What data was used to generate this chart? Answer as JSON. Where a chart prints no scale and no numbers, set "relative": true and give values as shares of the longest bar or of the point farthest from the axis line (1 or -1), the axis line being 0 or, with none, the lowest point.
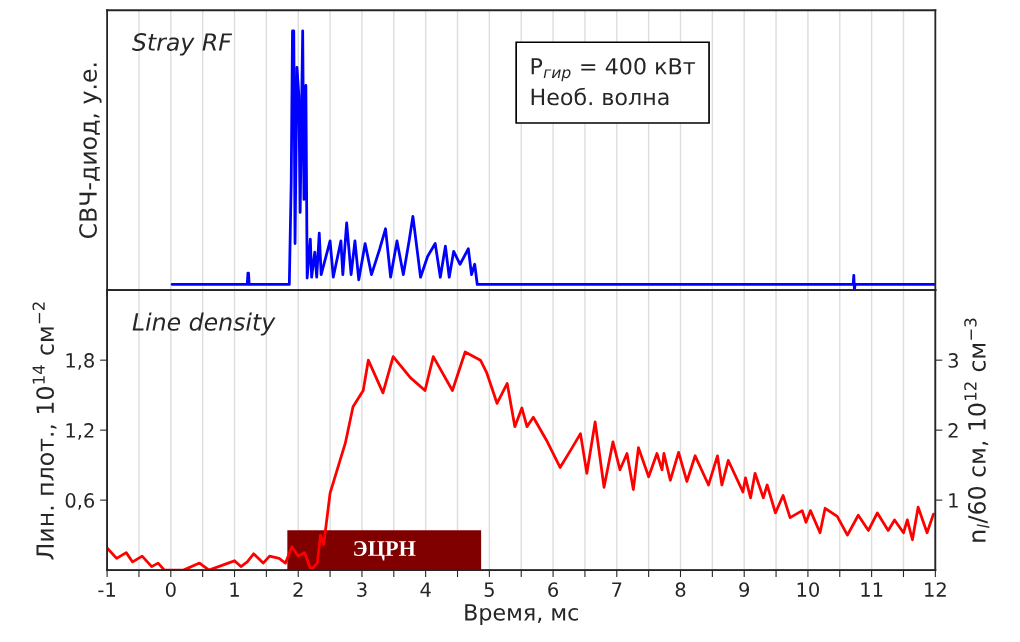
{
  "chart_data": [
    {
      "type": "line",
      "title": "Stray RF",
      "ylabel": "СВЧ-диод, у.е.",
      "relative": true,
      "tick_labels": false,
      "grid": "x",
      "xlim": [
        -1,
        12
      ],
      "xticks": [
        -1,
        {
          "value": -0.5,
          "label": null
        },
        0,
        {
          "value": 0.5,
          "label": null
        },
        1,
        {
          "value": 1.5,
          "label": null
        },
        2,
        {
          "value": 2.5,
          "label": null
        },
        3,
        {
          "value": 3.5,
          "label": null
        },
        4,
        {
          "value": 4.5,
          "label": null
        },
        5,
        {
          "value": 5.5,
          "label": null
        },
        6,
        {
          "value": 6.5,
          "label": null
        },
        7,
        {
          "value": 7.5,
          "label": null
        },
        8,
        {
          "value": 8.5,
          "label": null
        },
        9,
        {
          "value": 9.5,
          "label": null
        },
        10,
        {
          "value": 10.5,
          "label": null
        },
        11,
        {
          "value": 11.5,
          "label": null
        },
        12
      ],
      "annotations": [
        "P$_{гир}$ = 400 кВт\nНеоб. волна"
      ],
      "series": [
        {
          "color": "#0000ff",
          "x": [
            0.02,
            1.2,
            1.21,
            1.22,
            1.23,
            1.24,
            1.86,
            1.89,
            1.91,
            1.93,
            1.95,
            1.98,
            2.01,
            2.03,
            2.07,
            2.09,
            2.12,
            2.14,
            2.19,
            2.21,
            2.26,
            2.29,
            2.33,
            2.36,
            2.5,
            2.55,
            2.67,
            2.7,
            2.76,
            2.83,
            2.89,
            2.95,
            3.05,
            3.15,
            3.28,
            3.37,
            3.45,
            3.55,
            3.65,
            3.74,
            3.8,
            3.92,
            4.03,
            4.15,
            4.23,
            4.31,
            4.37,
            4.44,
            4.54,
            4.67,
            4.72,
            4.77,
            4.81,
            6,
            8,
            10.71,
            10.72,
            10.73,
            10.74,
            12
          ],
          "values": [
            0.022,
            0.022,
            0.066,
            0.066,
            0.022,
            0.022,
            0.022,
            0.42,
            1.0,
            1.0,
            0.18,
            0.86,
            0.75,
            0.3,
            1.0,
            0.35,
            0.79,
            0.047,
            0.197,
            0.05,
            0.147,
            0.05,
            0.22,
            0.06,
            0.19,
            0.05,
            0.19,
            0.06,
            0.26,
            0.06,
            0.19,
            0.04,
            0.18,
            0.06,
            0.16,
            0.237,
            0.05,
            0.19,
            0.06,
            0.19,
            0.285,
            0.05,
            0.13,
            0.18,
            0.05,
            0.17,
            0.05,
            0.15,
            0.1,
            0.16,
            0.06,
            0.1,
            0.022,
            0.022,
            0.022,
            0.022,
            0.057,
            0.0,
            0.022,
            0.022
          ]
        }
      ]
    },
    {
      "type": "line",
      "title": "Line density",
      "xlabel": "Время, мс",
      "ylabel": "Лин. плот., 10$^{14}$ см$^{−2}$",
      "y2label": "n$_{l}$/60 см, 10$^{12}$ см$^{−3}$",
      "grid": "x",
      "xlim": [
        -1,
        12
      ],
      "xticks": [
        -1,
        {
          "value": -0.5,
          "label": null
        },
        0,
        {
          "value": 0.5,
          "label": null
        },
        1,
        {
          "value": 1.5,
          "label": null
        },
        2,
        {
          "value": 2.5,
          "label": null
        },
        3,
        {
          "value": 3.5,
          "label": null
        },
        4,
        {
          "value": 4.5,
          "label": null
        },
        5,
        {
          "value": 5.5,
          "label": null
        },
        6,
        {
          "value": 6.5,
          "label": null
        },
        7,
        {
          "value": 7.5,
          "label": null
        },
        8,
        {
          "value": 8.5,
          "label": null
        },
        9,
        {
          "value": 9.5,
          "label": null
        },
        10,
        {
          "value": 10.5,
          "label": null
        },
        11,
        {
          "value": 11.5,
          "label": null
        },
        12
      ],
      "ylim": [
        0,
        2.4
      ],
      "yticks": [
        {
          "value": 0.6,
          "label": "0,6"
        },
        {
          "value": 1.2,
          "label": "1,2"
        },
        {
          "value": 1.8,
          "label": "1,8"
        }
      ],
      "y2lim": [
        0,
        4
      ],
      "y2ticks": [
        1,
        2,
        3
      ],
      "bands": [
        {
          "axis": "x",
          "from": 1.84,
          "to": 4.86,
          "label": "ЭЦРН",
          "color": "#800000"
        }
      ],
      "series": [
        {
          "color": "#ff0000",
          "x": [
            -1,
            -0.85,
            -0.7,
            -0.6,
            -0.45,
            -0.3,
            -0.2,
            -0.1,
            0.2,
            0.45,
            0.6,
            0.9,
            1.0,
            1.1,
            1.2,
            1.3,
            1.45,
            1.55,
            1.7,
            1.8,
            1.9,
            2.0,
            2.1,
            2.2,
            2.3,
            2.35,
            2.4,
            2.5,
            2.74,
            2.86,
            3.02,
            3.1,
            3.33,
            3.49,
            3.76,
            3.99,
            4.12,
            4.42,
            4.62,
            4.86,
            4.96,
            5.12,
            5.28,
            5.4,
            5.51,
            5.59,
            5.69,
            5.91,
            6.11,
            6.3,
            6.43,
            6.53,
            6.66,
            6.8,
            6.94,
            7.05,
            7.16,
            7.26,
            7.34,
            7.5,
            7.63,
            7.71,
            7.74,
            7.84,
            7.97,
            8.1,
            8.23,
            8.44,
            8.58,
            8.65,
            8.75,
            8.98,
            9.02,
            9.1,
            9.17,
            9.3,
            9.36,
            9.49,
            9.61,
            9.72,
            9.91,
            9.97,
            10.04,
            10.19,
            10.27,
            10.46,
            10.62,
            10.79,
            10.95,
            11.09,
            11.26,
            11.36,
            11.5,
            11.56,
            11.64,
            11.73,
            11.87,
            11.97
          ],
          "values": [
            0.19,
            0.1,
            0.15,
            0.07,
            0.12,
            0.03,
            0.06,
            0,
            0,
            0.06,
            0,
            0.06,
            0.08,
            0.03,
            0.07,
            0.14,
            0.06,
            0.12,
            0.1,
            0.06,
            0.2,
            0.12,
            0.15,
            0,
            0.06,
            0.3,
            0.22,
            0.66,
            1.09,
            1.4,
            1.54,
            1.8,
            1.52,
            1.83,
            1.65,
            1.54,
            1.83,
            1.54,
            1.87,
            1.8,
            1.69,
            1.43,
            1.6,
            1.23,
            1.39,
            1.23,
            1.31,
            1.1,
            0.88,
            1.05,
            1.17,
            0.83,
            1.27,
            0.71,
            1.1,
            0.86,
            1.0,
            0.69,
            1.05,
            0.8,
            1.0,
            0.86,
            1.0,
            0.77,
            1.01,
            0.76,
            0.98,
            0.73,
            0.98,
            0.73,
            0.94,
            0.67,
            0.79,
            0.62,
            0.83,
            0.62,
            0.73,
            0.49,
            0.64,
            0.45,
            0.51,
            0.41,
            0.51,
            0.32,
            0.53,
            0.46,
            0.3,
            0.47,
            0.34,
            0.49,
            0.34,
            0.43,
            0.32,
            0.43,
            0.26,
            0.54,
            0.32,
            0.48
          ]
        }
      ]
    }
  ]
}
